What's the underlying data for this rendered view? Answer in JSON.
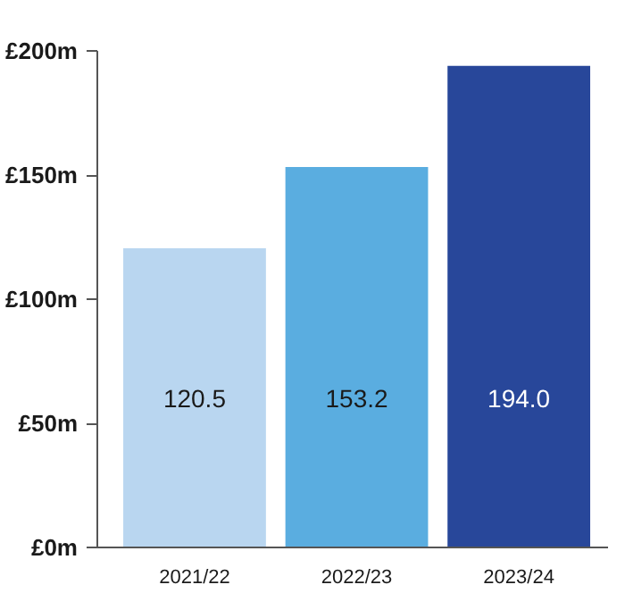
{
  "chart_data": {
    "type": "bar",
    "categories": [
      "2021/22",
      "2022/23",
      "2023/24"
    ],
    "values": [
      120.5,
      153.2,
      194.0
    ],
    "colors": [
      "#b9d6f0",
      "#5aade0",
      "#28479a"
    ],
    "value_labels": [
      "120.5",
      "153.2",
      "194.0"
    ],
    "ylim": [
      0,
      200
    ],
    "yticks": [
      {
        "value": 0,
        "label": "£0m"
      },
      {
        "value": 50,
        "label": "£50m"
      },
      {
        "value": 100,
        "label": "£100m"
      },
      {
        "value": 150,
        "label": "£150m"
      },
      {
        "value": 200,
        "label": "£200m"
      }
    ],
    "grid": false
  }
}
